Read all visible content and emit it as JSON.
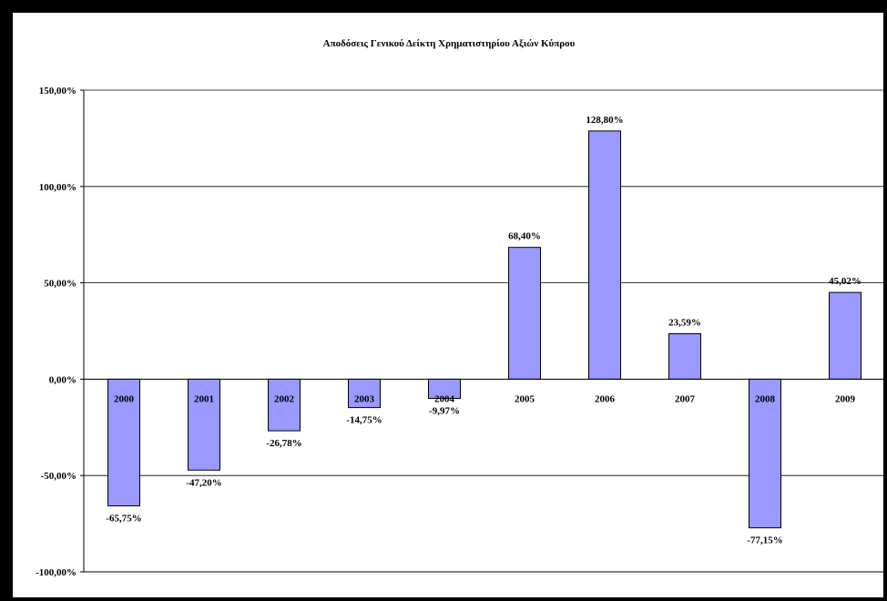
{
  "chart_data": {
    "type": "bar",
    "title": "Αποδόσεις Γενικού Δείκτη Χρηματιστηρίου Αξιών Κύπρου",
    "xlabel": "",
    "ylabel": "",
    "categories": [
      "2000",
      "2001",
      "2002",
      "2003",
      "2004",
      "2005",
      "2006",
      "2007",
      "2008",
      "2009"
    ],
    "values": [
      -65.75,
      -47.2,
      -26.78,
      -14.75,
      -9.97,
      68.4,
      128.8,
      23.59,
      -77.15,
      45.02
    ],
    "data_labels": [
      "-65,75%",
      "-47,20%",
      "-26,78%",
      "-14,75%",
      "-9,97%",
      "68,40%",
      "128,80%",
      "23,59%",
      "-77,15%",
      "45,02%"
    ],
    "ylim": [
      -100,
      150
    ],
    "yticks": [
      150,
      100,
      50,
      0,
      -50,
      -100
    ],
    "ytick_labels": [
      "150,00%",
      "100,00%",
      "50,00%",
      "0,00%",
      "-50,00%",
      "-100,00%"
    ],
    "grid": true,
    "legend": "none",
    "bar_color": "#9999ff",
    "bar_edge_color": "#000000"
  }
}
